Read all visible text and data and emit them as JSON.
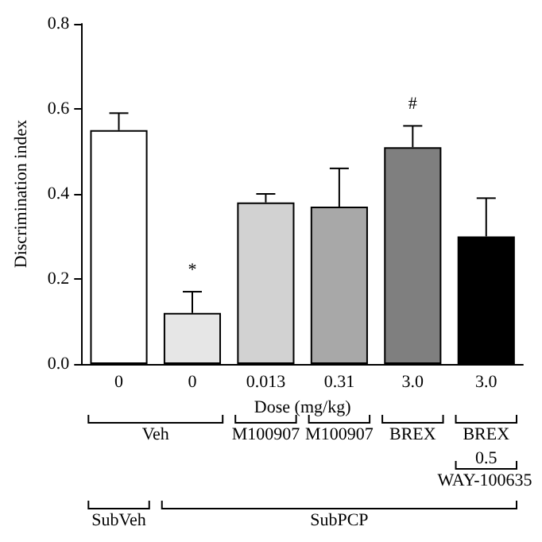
{
  "chart_data": {
    "type": "bar",
    "ylabel": "Discrimination index",
    "xlabel": "Dose (mg/kg)",
    "categories": [
      "0",
      "0",
      "0.013",
      "0.31",
      "3.0",
      "3.0"
    ],
    "values": [
      0.55,
      0.12,
      0.38,
      0.37,
      0.51,
      0.3
    ],
    "errors": [
      [
        0.55,
        0.59
      ],
      [
        0.12,
        0.17
      ],
      [
        0.38,
        0.4
      ],
      [
        0.37,
        0.46
      ],
      [
        0.51,
        0.56
      ],
      [
        0.3,
        0.39
      ]
    ],
    "colors": [
      "#ffffff",
      "#e6e6e6",
      "#d2d2d2",
      "#a8a8a8",
      "#7f7f7f",
      "#000000"
    ],
    "ylim": [
      0,
      0.8
    ],
    "yticks": [
      {
        "value": 0,
        "label": "0.0"
      },
      0.2,
      0.4,
      0.6,
      0.8
    ],
    "grid": false,
    "annotations": [
      "*",
      "#",
      "Veh",
      "M100907",
      "M100907",
      "BREX",
      "BREX",
      "0.5",
      "WAY-100635",
      "SubVeh",
      "SubPCP"
    ]
  }
}
